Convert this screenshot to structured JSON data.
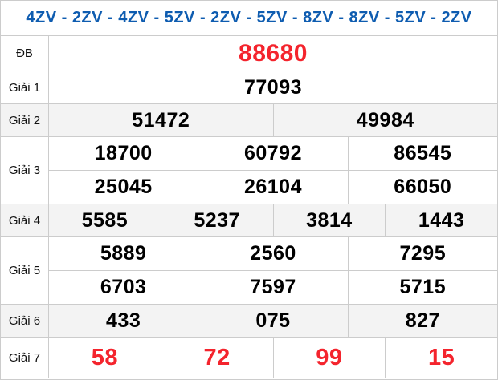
{
  "title": "4ZV - 2ZV - 4ZV - 5ZV - 2ZV - 5ZV - 8ZV - 8ZV - 5ZV - 2ZV",
  "colors": {
    "title_blue": "#0e5cb0",
    "number_red": "#f4242d",
    "alt_row_bg": "#f3f3f3",
    "border": "#cccccc"
  },
  "prizes": [
    {
      "label": "ĐB",
      "rows": [
        [
          "88680"
        ]
      ]
    },
    {
      "label": "Giải 1",
      "rows": [
        [
          "77093"
        ]
      ]
    },
    {
      "label": "Giải 2",
      "rows": [
        [
          "51472",
          "49984"
        ]
      ]
    },
    {
      "label": "Giải 3",
      "rows": [
        [
          "18700",
          "60792",
          "86545"
        ],
        [
          "25045",
          "26104",
          "66050"
        ]
      ]
    },
    {
      "label": "Giải 4",
      "rows": [
        [
          "5585",
          "5237",
          "3814",
          "1443"
        ]
      ]
    },
    {
      "label": "Giải 5",
      "rows": [
        [
          "5889",
          "2560",
          "7295"
        ],
        [
          "6703",
          "7597",
          "5715"
        ]
      ]
    },
    {
      "label": "Giải 6",
      "rows": [
        [
          "433",
          "075",
          "827"
        ]
      ]
    },
    {
      "label": "Giải 7",
      "rows": [
        [
          "58",
          "72",
          "99",
          "15"
        ]
      ]
    }
  ]
}
